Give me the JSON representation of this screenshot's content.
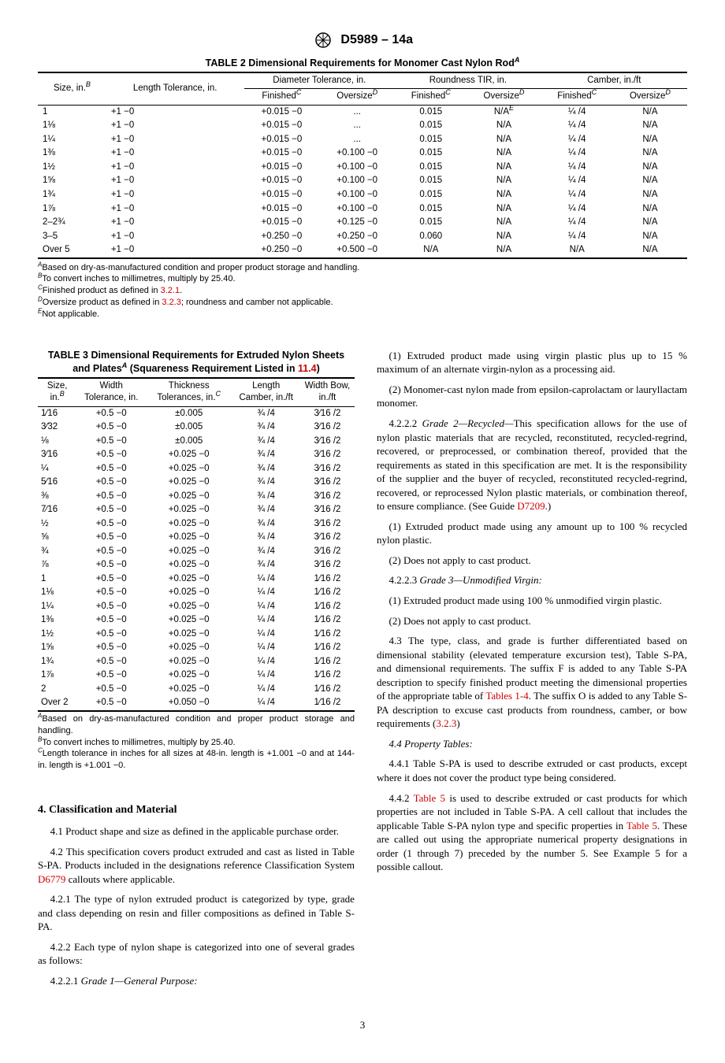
{
  "header": "D5989 – 14a",
  "table2": {
    "title": "TABLE 2 Dimensional Requirements for Monomer Cast Nylon Rod",
    "title_sup": "A",
    "col_size": "Size, in.",
    "col_size_sup": "B",
    "col_len": "Length Tolerance, in.",
    "col_dia": "Diameter Tolerance, in.",
    "col_round": "Roundness TIR, in.",
    "col_camber": "Camber, in./ft",
    "sub_fin": "Finished",
    "sub_fin_sup": "C",
    "sub_ov": "Oversize",
    "sub_ov_sup": "D",
    "na_e": "N/A",
    "na_e_sup": "E",
    "rows": [
      {
        "size": "1",
        "len": "+1 −0",
        "dfin": "+0.015 −0",
        "dov": "...",
        "rfin": "0.015",
        "rov": "__NAE__",
        "cfin": "¼ /4",
        "cov": "N/A"
      },
      {
        "size": "1⅛",
        "len": "+1 −0",
        "dfin": "+0.015 −0",
        "dov": "...",
        "rfin": "0.015",
        "rov": "N/A",
        "cfin": "¼ /4",
        "cov": "N/A"
      },
      {
        "size": "1¼",
        "len": "+1 −0",
        "dfin": "+0.015 −0",
        "dov": "...",
        "rfin": "0.015",
        "rov": "N/A",
        "cfin": "¼ /4",
        "cov": "N/A"
      },
      {
        "size": "1⅜",
        "len": "+1 −0",
        "dfin": "+0.015 −0",
        "dov": "+0.100 −0",
        "rfin": "0.015",
        "rov": "N/A",
        "cfin": "¼ /4",
        "cov": "N/A"
      },
      {
        "size": "1½",
        "len": "+1 −0",
        "dfin": "+0.015 −0",
        "dov": "+0.100 −0",
        "rfin": "0.015",
        "rov": "N/A",
        "cfin": "¼ /4",
        "cov": "N/A"
      },
      {
        "size": "1⅝",
        "len": "+1 −0",
        "dfin": "+0.015 −0",
        "dov": "+0.100 −0",
        "rfin": "0.015",
        "rov": "N/A",
        "cfin": "¼ /4",
        "cov": "N/A"
      },
      {
        "size": "1¾",
        "len": "+1 −0",
        "dfin": "+0.015 −0",
        "dov": "+0.100 −0",
        "rfin": "0.015",
        "rov": "N/A",
        "cfin": "¼ /4",
        "cov": "N/A"
      },
      {
        "size": "1⅞",
        "len": "+1 −0",
        "dfin": "+0.015 −0",
        "dov": "+0.100 −0",
        "rfin": "0.015",
        "rov": "N/A",
        "cfin": "¼ /4",
        "cov": "N/A"
      },
      {
        "size": "2–2¾",
        "len": "+1 −0",
        "dfin": "+0.015 −0",
        "dov": "+0.125 −0",
        "rfin": "0.015",
        "rov": "N/A",
        "cfin": "¼ /4",
        "cov": "N/A"
      },
      {
        "size": "3–5",
        "len": "+1 −0",
        "dfin": "+0.250 −0",
        "dov": "+0.250 −0",
        "rfin": "0.060",
        "rov": "N/A",
        "cfin": "¼ /4",
        "cov": "N/A"
      },
      {
        "size": "Over 5",
        "len": "+1 −0",
        "dfin": "+0.250 −0",
        "dov": "+0.500 −0",
        "rfin": "N/A",
        "rov": "N/A",
        "cfin": "N/A",
        "cov": "N/A"
      }
    ],
    "footA_pre": "A",
    "footA": "Based on dry-as-manufactured condition and proper product storage and handling.",
    "footB_pre": "B",
    "footB": "To convert inches to millimetres, multiply by 25.40.",
    "footC_pre": "C",
    "footC": "Finished product as defined in ",
    "footC_link": "3.2.1",
    "footC_post": ".",
    "footD_pre": "D",
    "footD": "Oversize product as defined in ",
    "footD_link": "3.2.3",
    "footD_post": "; roundness and camber not applicable.",
    "footE_pre": "E",
    "footE": "Not applicable."
  },
  "table3": {
    "title_l1": "TABLE 3 Dimensional Requirements for Extruded Nylon Sheets",
    "title_l2_pre": "and Plates",
    "title_l2_sup": "A",
    "title_l2_mid": " (Squareness Requirement Listed in ",
    "title_l2_link": "11.4",
    "title_l2_post": ")",
    "col_size": "Size, in.",
    "col_size_sup": "B",
    "col_w": "Width Tolerance, in.",
    "col_t": "Thickness Tolerances, in.",
    "col_t_sup": "C",
    "col_lc": "Length Camber, in./ft",
    "col_wb": "Width Bow, in./ft",
    "rows": [
      {
        "s": "1⁄16",
        "w": "+0.5 −0",
        "t": "±0.005",
        "lc": "¾ /4",
        "wb": "3⁄16 /2"
      },
      {
        "s": "3⁄32",
        "w": "+0.5 −0",
        "t": "±0.005",
        "lc": "¾ /4",
        "wb": "3⁄16 /2"
      },
      {
        "s": "⅛",
        "w": "+0.5 −0",
        "t": "±0.005",
        "lc": "¾ /4",
        "wb": "3⁄16 /2"
      },
      {
        "s": "3⁄16",
        "w": "+0.5 −0",
        "t": "+0.025 −0",
        "lc": "¾ /4",
        "wb": "3⁄16 /2"
      },
      {
        "s": "¼",
        "w": "+0.5 −0",
        "t": "+0.025 −0",
        "lc": "¾ /4",
        "wb": "3⁄16 /2"
      },
      {
        "s": "5⁄16",
        "w": "+0.5 −0",
        "t": "+0.025 −0",
        "lc": "¾ /4",
        "wb": "3⁄16 /2"
      },
      {
        "s": "⅜",
        "w": "+0.5 −0",
        "t": "+0.025 −0",
        "lc": "¾ /4",
        "wb": "3⁄16 /2"
      },
      {
        "s": "7⁄16",
        "w": "+0.5 −0",
        "t": "+0.025 −0",
        "lc": "¾ /4",
        "wb": "3⁄16 /2"
      },
      {
        "s": "½",
        "w": "+0.5 −0",
        "t": "+0.025 −0",
        "lc": "¾ /4",
        "wb": "3⁄16 /2"
      },
      {
        "s": "⅝",
        "w": "+0.5 −0",
        "t": "+0.025 −0",
        "lc": "¾ /4",
        "wb": "3⁄16 /2"
      },
      {
        "s": "¾",
        "w": "+0.5 −0",
        "t": "+0.025 −0",
        "lc": "¾ /4",
        "wb": "3⁄16 /2"
      },
      {
        "s": "⅞",
        "w": "+0.5 −0",
        "t": "+0.025 −0",
        "lc": "¾ /4",
        "wb": "3⁄16 /2"
      },
      {
        "s": "1",
        "w": "+0.5 −0",
        "t": "+0.025 −0",
        "lc": "¼ /4",
        "wb": "1⁄16 /2"
      },
      {
        "s": "1⅛",
        "w": "+0.5 −0",
        "t": "+0.025 −0",
        "lc": "¼ /4",
        "wb": "1⁄16 /2"
      },
      {
        "s": "1¼",
        "w": "+0.5 −0",
        "t": "+0.025 −0",
        "lc": "¼ /4",
        "wb": "1⁄16 /2"
      },
      {
        "s": "1⅜",
        "w": "+0.5 −0",
        "t": "+0.025 −0",
        "lc": "¼ /4",
        "wb": "1⁄16 /2"
      },
      {
        "s": "1½",
        "w": "+0.5 −0",
        "t": "+0.025 −0",
        "lc": "¼ /4",
        "wb": "1⁄16 /2"
      },
      {
        "s": "1⅝",
        "w": "+0.5 −0",
        "t": "+0.025 −0",
        "lc": "¼ /4",
        "wb": "1⁄16 /2"
      },
      {
        "s": "1¾",
        "w": "+0.5 −0",
        "t": "+0.025 −0",
        "lc": "¼ /4",
        "wb": "1⁄16 /2"
      },
      {
        "s": "1⅞",
        "w": "+0.5 −0",
        "t": "+0.025 −0",
        "lc": "¼ /4",
        "wb": "1⁄16 /2"
      },
      {
        "s": "2",
        "w": "+0.5 −0",
        "t": "+0.025 −0",
        "lc": "¼ /4",
        "wb": "1⁄16 /2"
      },
      {
        "s": "Over 2",
        "w": "+0.5 −0",
        "t": "+0.050 −0",
        "lc": "¼ /4",
        "wb": "1⁄16 /2"
      }
    ],
    "footA_pre": "A",
    "footA": "Based on dry-as-manufactured condition and proper product storage and handling.",
    "footB_pre": "B",
    "footB": "To convert inches to millimetres, multiply by 25.40.",
    "footC_pre": "C",
    "footC": "Length tolerance in inches for all sizes at 48-in. length is +1.001 −0 and at 144-in. length is +1.001 −0."
  },
  "section4_heading": "4. Classification and Material",
  "p41": "4.1 Product shape and size as defined in the applicable purchase order.",
  "p42_a": "4.2 This specification covers product extruded and cast as listed in Table S-PA. Products included in the designations reference Classification System ",
  "p42_link": "D6779",
  "p42_b": " callouts where applicable.",
  "p421": "4.2.1 The type of nylon extruded product is categorized by type, grade and class depending on resin and filler compositions as defined in Table S-PA.",
  "p422": "4.2.2 Each type of nylon shape is categorized into one of several grades as follows:",
  "p4221_lbl": "4.2.2.1 ",
  "p4221_it": "Grade 1—General Purpose:",
  "r1": "(1) Extruded product made using virgin plastic plus up to 15 % maximum of an alternate virgin-nylon as a processing aid.",
  "r2": "(2) Monomer-cast nylon made from epsilon-caprolactam or lauryllactam monomer.",
  "p4222_lbl": "4.2.2.2 ",
  "p4222_it": "Grade 2—Recycled—",
  "p4222_body": "This specification allows for the use of nylon plastic materials that are recycled, reconstituted, recycled-regrind, recovered, or preprocessed, or combination thereof, provided that the requirements as stated in this specification are met. It is the responsibility of the supplier and the buyer of recycled, reconstituted recycled-regrind, recovered, or reprocessed Nylon plastic materials, or combination thereof, to ensure compliance. (See Guide ",
  "p4222_link": "D7209",
  "p4222_post": ".)",
  "r3": "(1) Extruded product made using any amount up to 100 % recycled nylon plastic.",
  "r4": "(2) Does not apply to cast product.",
  "p4223_lbl": "4.2.2.3 ",
  "p4223_it": "Grade 3—Unmodified Virgin:",
  "r5": "(1) Extruded product made using 100 % unmodified virgin plastic.",
  "r6": "(2) Does not apply to cast product.",
  "p43_a": "4.3 The type, class, and grade is further differentiated based on dimensional stability (elevated temperature excursion test), Table S-PA, and dimensional requirements. The suffix F is added to any Table S-PA description to specify finished product meeting the dimensional properties of the appropriate table of ",
  "p43_link1": "Tables 1-4",
  "p43_b": ". The suffix O is added to any Table S-PA description to excuse cast products from roundness, camber, or bow requirements (",
  "p43_link2": "3.2.3",
  "p43_c": ")",
  "p44_it": "4.4 Property Tables:",
  "p441": "4.4.1 Table S-PA is used to describe extruded or cast products, except where it does not cover the product type being considered.",
  "p442_a": "4.4.2 ",
  "p442_link1": "Table 5",
  "p442_b": " is used to describe extruded or cast products for which properties are not included in Table S-PA. A cell callout that includes the applicable Table S-PA nylon type and specific properties in ",
  "p442_link2": "Table 5",
  "p442_c": ". These are called out using the appropriate numerical property designations in order (1 through 7) preceded by the number 5. See Example 5 for a possible callout.",
  "page_num": "3"
}
